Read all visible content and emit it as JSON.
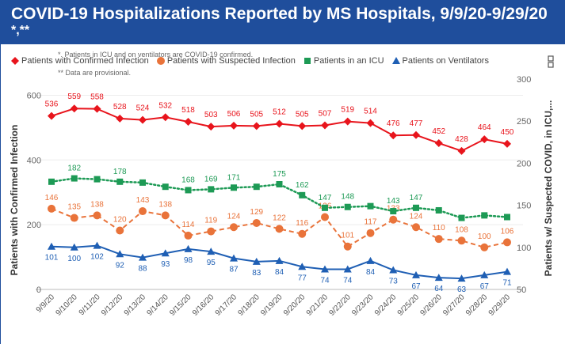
{
  "header": {
    "title": "COVID-19 Hospitalizations Reported by MS Hospitals, 9/9/20-9/29/20",
    "subtitle": "*,**"
  },
  "notes": {
    "note1": "*. Patients in ICU and on ventilators are COVID-19 confirmed.",
    "note2": "** Data are provisional."
  },
  "chart_data": {
    "type": "line",
    "title": "COVID-19 Hospitalizations Reported by MS Hospitals, 9/9/20-9/29/20",
    "ylabel_left": "Patients with Confirmed Infection",
    "ylabel_right": "Patients w/ Suspected COVID, in ICU,...",
    "ylim_left": [
      0,
      650
    ],
    "ylim_right": [
      50,
      300
    ],
    "yticks_left": [
      0,
      200,
      400,
      600
    ],
    "yticks_right": [
      50,
      100,
      150,
      200,
      250,
      300
    ],
    "legend_position": "top",
    "categories": [
      "9/9/20",
      "9/10/20",
      "9/11/20",
      "9/12/20",
      "9/13/20",
      "9/14/20",
      "9/15/20",
      "9/16/20",
      "9/17/20",
      "9/18/20",
      "9/19/20",
      "9/20/20",
      "9/21/20",
      "9/22/20",
      "9/23/20",
      "9/24/20",
      "9/25/20",
      "9/26/20",
      "9/27/20",
      "9/28/20",
      "9/29/20"
    ],
    "series": [
      {
        "name": "Patients with Confirmed Infection",
        "axis": "left",
        "color": "#e8141c",
        "marker": "diamond",
        "style": "solid",
        "values": [
          536,
          559,
          558,
          528,
          524,
          532,
          518,
          503,
          506,
          505,
          512,
          505,
          507,
          519,
          514,
          476,
          477,
          452,
          428,
          464,
          450
        ]
      },
      {
        "name": "Patients with Suspected Infection",
        "axis": "right",
        "color": "#e9733a",
        "marker": "circle",
        "style": "dashed",
        "values": [
          146,
          135,
          138,
          120,
          143,
          138,
          114,
          119,
          124,
          129,
          122,
          116,
          136,
          101,
          117,
          133,
          124,
          110,
          108,
          100,
          106
        ]
      },
      {
        "name": "Patients in an ICU",
        "axis": "right",
        "color": "#1d9a55",
        "marker": "square",
        "style": "dotted",
        "values": [
          178,
          182,
          181,
          178,
          177,
          172,
          168,
          169,
          171,
          172,
          175,
          162,
          147,
          148,
          149,
          143,
          147,
          144,
          135,
          138,
          136
        ]
      },
      {
        "name": "Patients on Ventilators",
        "axis": "right",
        "color": "#1f5fb4",
        "marker": "triangle",
        "style": "solid",
        "values": [
          101,
          100,
          102,
          92,
          88,
          93,
          98,
          95,
          87,
          83,
          84,
          77,
          74,
          74,
          84,
          73,
          67,
          64,
          63,
          67,
          71
        ]
      }
    ],
    "data_labels": {
      "Patients with Confirmed Infection": [
        "536",
        "559",
        "558",
        "528",
        "524",
        "532",
        "518",
        "503",
        "506",
        "505",
        "512",
        "505",
        "507",
        "519",
        "514",
        "476",
        "477",
        "452",
        "428",
        "464",
        "450"
      ],
      "Patients with Suspected Infection": [
        "146",
        "135",
        "138",
        "120",
        "143",
        "138",
        "114",
        "119",
        "124",
        "129",
        "122",
        "116",
        "136",
        "101",
        "117",
        "133",
        "124",
        "110",
        "108",
        "100",
        "106"
      ],
      "Patients in an ICU": [
        "",
        "182",
        "",
        "178",
        "",
        "",
        "168",
        "169",
        "171",
        "",
        "175",
        "162",
        "147",
        "148",
        "",
        "143",
        "147",
        "",
        "",
        "",
        ""
      ],
      "Patients on Ventilators": [
        "101",
        "100",
        "102",
        "92",
        "88",
        "93",
        "98",
        "95",
        "87",
        "83",
        "84",
        "77",
        "74",
        "74",
        "84",
        "73",
        "67",
        "64",
        "63",
        "67",
        "71"
      ]
    }
  }
}
